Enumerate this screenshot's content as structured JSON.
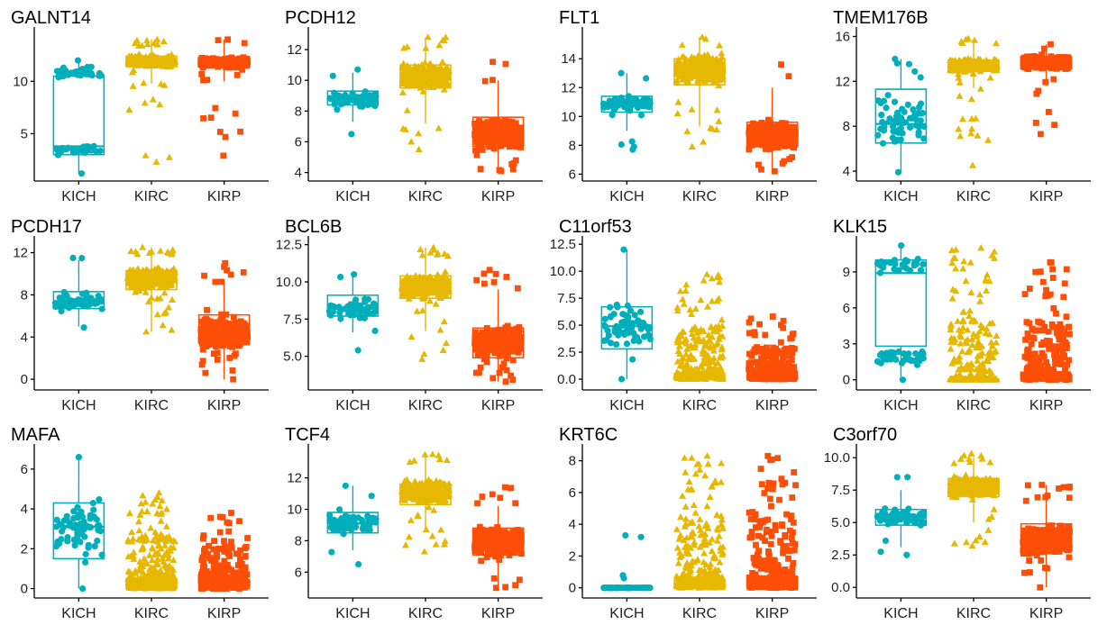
{
  "chart_data": {
    "type": "boxplot-jitter",
    "layout": "3 rows x 4 columns facet grid",
    "categories": [
      "KICH",
      "KIRC",
      "KIRP"
    ],
    "colors": {
      "KICH": "#00AFBB",
      "KIRC": "#E7B800",
      "KIRP": "#FC4E07"
    },
    "shapes": {
      "KICH": "circle",
      "KIRC": "triangle",
      "KIRP": "square"
    },
    "xlabel": "",
    "ylabel": "",
    "panels": [
      {
        "title": "GALNT14",
        "ylim": [
          1.0,
          14.5
        ],
        "yticks": [
          5,
          10
        ],
        "ytick_labels": [
          "5",
          "10"
        ],
        "groups": [
          {
            "name": "KICH",
            "q1": 3.0,
            "median": 3.8,
            "q3": 10.5,
            "wlo": 1.2,
            "whi": 12.0,
            "n": 70,
            "pmin": 1.2,
            "pmax": 12.0,
            "bimodal": [
              3.5,
              10.8
            ]
          },
          {
            "name": "KIRC",
            "q1": 11.4,
            "median": 11.9,
            "q3": 12.4,
            "wlo": 9.8,
            "whi": 14.0,
            "n": 500,
            "pmin": 2.3,
            "pmax": 14.0
          },
          {
            "name": "KIRP",
            "q1": 11.4,
            "median": 11.8,
            "q3": 12.3,
            "wlo": 10.0,
            "whi": 14.0,
            "n": 280,
            "pmin": 2.9,
            "pmax": 14.0
          }
        ]
      },
      {
        "title": "PCDH12",
        "ylim": [
          3.8,
          13.0
        ],
        "yticks": [
          4,
          6,
          8,
          10,
          12
        ],
        "ytick_labels": [
          "4",
          "6",
          "8",
          "10",
          "12"
        ],
        "groups": [
          {
            "name": "KICH",
            "q1": 8.4,
            "median": 8.8,
            "q3": 9.3,
            "wlo": 7.3,
            "whi": 10.5,
            "n": 66,
            "pmin": 6.5,
            "pmax": 10.7
          },
          {
            "name": "KIRC",
            "q1": 9.5,
            "median": 10.3,
            "q3": 11.0,
            "wlo": 7.2,
            "whi": 12.8,
            "n": 520,
            "pmin": 5.5,
            "pmax": 12.8
          },
          {
            "name": "KIRP",
            "q1": 5.7,
            "median": 6.5,
            "q3": 7.6,
            "wlo": 4.1,
            "whi": 10.0,
            "n": 290,
            "pmin": 4.1,
            "pmax": 11.2
          }
        ]
      },
      {
        "title": "FLT1",
        "ylim": [
          5.9,
          15.7
        ],
        "yticks": [
          6,
          8,
          10,
          12,
          14
        ],
        "ytick_labels": [
          "6",
          "8",
          "10",
          "12",
          "14"
        ],
        "groups": [
          {
            "name": "KICH",
            "q1": 10.3,
            "median": 10.9,
            "q3": 11.4,
            "wlo": 9.0,
            "whi": 13.0,
            "n": 66,
            "pmin": 7.7,
            "pmax": 13.0
          },
          {
            "name": "KIRC",
            "q1": 12.2,
            "median": 13.3,
            "q3": 14.0,
            "wlo": 9.3,
            "whi": 15.5,
            "n": 520,
            "pmin": 7.9,
            "pmax": 15.5
          },
          {
            "name": "KIRP",
            "q1": 7.9,
            "median": 8.7,
            "q3": 9.6,
            "wlo": 6.2,
            "whi": 12.0,
            "n": 290,
            "pmin": 6.2,
            "pmax": 13.6
          }
        ]
      },
      {
        "title": "TMEM176B",
        "ylim": [
          3.6,
          16.2
        ],
        "yticks": [
          4,
          8,
          12,
          16
        ],
        "ytick_labels": [
          "4",
          "8",
          "12",
          "16"
        ],
        "groups": [
          {
            "name": "KICH",
            "q1": 6.5,
            "median": 8.2,
            "q3": 11.3,
            "wlo": 3.9,
            "whi": 14.0,
            "n": 66,
            "pmin": 3.9,
            "pmax": 14.0
          },
          {
            "name": "KIRC",
            "q1": 12.9,
            "median": 13.4,
            "q3": 13.9,
            "wlo": 11.4,
            "whi": 15.5,
            "n": 520,
            "pmin": 4.5,
            "pmax": 15.8
          },
          {
            "name": "KIRP",
            "q1": 13.1,
            "median": 13.7,
            "q3": 14.2,
            "wlo": 11.6,
            "whi": 15.3,
            "n": 290,
            "pmin": 7.3,
            "pmax": 15.3
          }
        ]
      },
      {
        "title": "PCDH17",
        "ylim": [
          -0.5,
          12.9
        ],
        "yticks": [
          0,
          4,
          8,
          12
        ],
        "ytick_labels": [
          "0",
          "4",
          "8",
          "12"
        ],
        "groups": [
          {
            "name": "KICH",
            "q1": 6.7,
            "median": 7.4,
            "q3": 8.3,
            "wlo": 5.0,
            "whi": 11.3,
            "n": 66,
            "pmin": 4.9,
            "pmax": 11.5
          },
          {
            "name": "KIRC",
            "q1": 8.5,
            "median": 9.6,
            "q3": 10.3,
            "wlo": 4.5,
            "whi": 12.5,
            "n": 520,
            "pmin": 4.5,
            "pmax": 12.5
          },
          {
            "name": "KIRP",
            "q1": 3.4,
            "median": 4.4,
            "q3": 6.1,
            "wlo": 0.0,
            "whi": 9.5,
            "n": 290,
            "pmin": 0.0,
            "pmax": 11.0
          }
        ]
      },
      {
        "title": "BCL6B",
        "ylim": [
          3.1,
          12.6
        ],
        "yticks": [
          5.0,
          7.5,
          10.0,
          12.5
        ],
        "ytick_labels": [
          "5.0",
          "7.5",
          "10.0",
          "12.5"
        ],
        "groups": [
          {
            "name": "KICH",
            "q1": 7.7,
            "median": 8.2,
            "q3": 9.1,
            "wlo": 6.6,
            "whi": 10.5,
            "n": 66,
            "pmin": 5.4,
            "pmax": 10.5
          },
          {
            "name": "KIRC",
            "q1": 8.9,
            "median": 9.7,
            "q3": 10.4,
            "wlo": 6.7,
            "whi": 12.3,
            "n": 520,
            "pmin": 4.8,
            "pmax": 12.3
          },
          {
            "name": "KIRP",
            "q1": 4.9,
            "median": 5.9,
            "q3": 6.9,
            "wlo": 3.3,
            "whi": 9.5,
            "n": 290,
            "pmin": 3.3,
            "pmax": 10.8
          }
        ]
      },
      {
        "title": "C11orf53",
        "ylim": [
          -0.5,
          12.6
        ],
        "yticks": [
          0.0,
          2.5,
          5.0,
          7.5,
          10.0,
          12.5
        ],
        "ytick_labels": [
          "0.0",
          "2.5",
          "5.0",
          "7.5",
          "10.0",
          "12.5"
        ],
        "groups": [
          {
            "name": "KICH",
            "q1": 2.8,
            "median": 4.9,
            "q3": 6.7,
            "wlo": 0.0,
            "whi": 12.0,
            "n": 66,
            "pmin": 0.0,
            "pmax": 12.0
          },
          {
            "name": "KIRC",
            "q1": 0.0,
            "median": 0.2,
            "q3": 0.5,
            "wlo": 0.0,
            "whi": 1.2,
            "n": 520,
            "pmin": 0.0,
            "pmax": 9.7,
            "skew": true
          },
          {
            "name": "KIRP",
            "q1": 0.0,
            "median": 0.15,
            "q3": 0.35,
            "wlo": 0.0,
            "whi": 0.8,
            "n": 290,
            "pmin": 0.0,
            "pmax": 5.8,
            "skew": true
          }
        ]
      },
      {
        "title": "KLK15",
        "ylim": [
          -0.4,
          11.4
        ],
        "yticks": [
          0,
          3,
          6,
          9
        ],
        "ytick_labels": [
          "0",
          "3",
          "6",
          "9"
        ],
        "groups": [
          {
            "name": "KICH",
            "q1": 2.8,
            "median": 8.9,
            "q3": 10.0,
            "wlo": 0.0,
            "whi": 11.2,
            "n": 66,
            "pmin": 0.0,
            "pmax": 11.2,
            "bimodal": [
              1.8,
              9.6
            ]
          },
          {
            "name": "KIRC",
            "q1": 0.0,
            "median": 0.0,
            "q3": 0.05,
            "wlo": 0.0,
            "whi": 0.1,
            "n": 520,
            "pmin": 0.0,
            "pmax": 11.0,
            "skew": true
          },
          {
            "name": "KIRP",
            "q1": 0.0,
            "median": 0.2,
            "q3": 0.45,
            "wlo": 0.0,
            "whi": 1.0,
            "n": 290,
            "pmin": 0.0,
            "pmax": 9.8,
            "skew": true
          }
        ]
      },
      {
        "title": "MAFA",
        "ylim": [
          -0.2,
          6.9
        ],
        "yticks": [
          0,
          2,
          4,
          6
        ],
        "ytick_labels": [
          "0",
          "2",
          "4",
          "6"
        ],
        "groups": [
          {
            "name": "KICH",
            "q1": 1.5,
            "median": 3.1,
            "q3": 4.3,
            "wlo": 0.0,
            "whi": 6.6,
            "n": 66,
            "pmin": 0.0,
            "pmax": 6.6
          },
          {
            "name": "KIRC",
            "q1": 0.0,
            "median": 0.15,
            "q3": 0.5,
            "wlo": 0.0,
            "whi": 1.2,
            "n": 520,
            "pmin": 0.0,
            "pmax": 4.8,
            "skew": true
          },
          {
            "name": "KIRP",
            "q1": 0.0,
            "median": 0.1,
            "q3": 0.45,
            "wlo": 0.0,
            "whi": 1.1,
            "n": 290,
            "pmin": 0.0,
            "pmax": 3.8,
            "skew": true
          }
        ]
      },
      {
        "title": "TCF4",
        "ylim": [
          4.7,
          13.7
        ],
        "yticks": [
          6,
          8,
          10,
          12
        ],
        "ytick_labels": [
          "6",
          "8",
          "10",
          "12"
        ],
        "groups": [
          {
            "name": "KICH",
            "q1": 8.5,
            "median": 9.1,
            "q3": 9.8,
            "wlo": 7.4,
            "whi": 11.5,
            "n": 66,
            "pmin": 6.5,
            "pmax": 11.5
          },
          {
            "name": "KIRC",
            "q1": 10.3,
            "median": 11.1,
            "q3": 11.6,
            "wlo": 8.6,
            "whi": 13.5,
            "n": 520,
            "pmin": 7.3,
            "pmax": 13.5
          },
          {
            "name": "KIRP",
            "q1": 7.1,
            "median": 8.0,
            "q3": 8.8,
            "wlo": 5.0,
            "whi": 10.2,
            "n": 290,
            "pmin": 5.0,
            "pmax": 11.4
          }
        ]
      },
      {
        "title": "KRT6C",
        "ylim": [
          -0.3,
          8.6
        ],
        "yticks": [
          0,
          2,
          4,
          6,
          8
        ],
        "ytick_labels": [
          "0",
          "2",
          "4",
          "6",
          "8"
        ],
        "groups": [
          {
            "name": "KICH",
            "q1": 0.0,
            "median": 0.0,
            "q3": 0.0,
            "wlo": 0.0,
            "whi": 0.0,
            "n": 66,
            "pmin": 0.0,
            "pmax": 3.3,
            "skew": true,
            "zero_heavy": true
          },
          {
            "name": "KIRC",
            "q1": 0.0,
            "median": 0.1,
            "q3": 0.45,
            "wlo": 0.0,
            "whi": 1.1,
            "n": 520,
            "pmin": 0.0,
            "pmax": 8.3,
            "skew": true
          },
          {
            "name": "KIRP",
            "q1": 0.0,
            "median": 0.1,
            "q3": 0.65,
            "wlo": 0.0,
            "whi": 1.6,
            "n": 290,
            "pmin": 0.0,
            "pmax": 8.3,
            "skew": true
          }
        ]
      },
      {
        "title": "C3orf70",
        "ylim": [
          -0.4,
          10.5
        ],
        "yticks": [
          0.0,
          2.5,
          5.0,
          7.5,
          10.0
        ],
        "ytick_labels": [
          "0.0",
          "2.5",
          "5.0",
          "7.5",
          "10.0"
        ],
        "groups": [
          {
            "name": "KICH",
            "q1": 4.8,
            "median": 5.4,
            "q3": 6.0,
            "wlo": 3.1,
            "whi": 7.5,
            "n": 66,
            "pmin": 2.5,
            "pmax": 8.5
          },
          {
            "name": "KIRC",
            "q1": 7.0,
            "median": 7.8,
            "q3": 8.4,
            "wlo": 5.0,
            "whi": 10.0,
            "n": 520,
            "pmin": 3.2,
            "pmax": 10.3
          },
          {
            "name": "KIRP",
            "q1": 2.8,
            "median": 3.6,
            "q3": 4.9,
            "wlo": 0.0,
            "whi": 7.9,
            "n": 290,
            "pmin": 0.0,
            "pmax": 7.9
          }
        ]
      }
    ]
  }
}
